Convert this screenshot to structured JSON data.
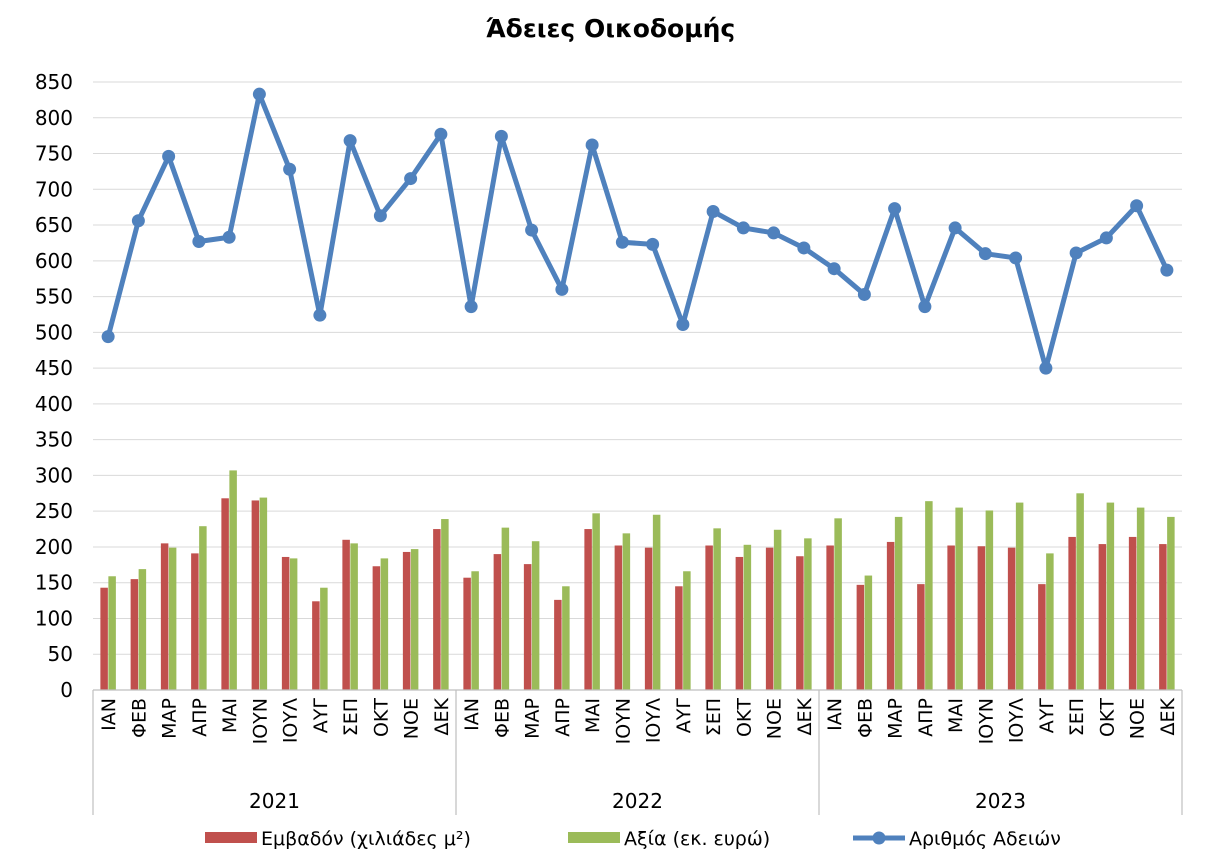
{
  "chart_data": {
    "type": "bar",
    "title": "Άδειες Οικοδομής",
    "xlabel": "",
    "ylabel": "",
    "ylim": [
      0,
      850
    ],
    "ytick_step": 50,
    "grid": true,
    "legend_position": "bottom",
    "years": [
      "2021",
      "2022",
      "2023"
    ],
    "months": [
      "ΙΑΝ",
      "ΦΕΒ",
      "ΜΑΡ",
      "ΑΠΡ",
      "ΜΑΙ",
      "ΙΟΥΝ",
      "ΙΟΥΛ",
      "ΑΥΓ",
      "ΣΕΠ",
      "ΟΚΤ",
      "ΝΟΕ",
      "ΔΕΚ"
    ],
    "series": [
      {
        "name": "Εμβαδόν (χιλιάδες μ²)",
        "kind": "bar",
        "color": "#c0504d",
        "values": [
          143,
          155,
          205,
          191,
          268,
          265,
          186,
          124,
          210,
          173,
          193,
          225,
          157,
          190,
          176,
          126,
          225,
          202,
          199,
          145,
          202,
          186,
          199,
          187,
          202,
          147,
          207,
          148,
          202,
          201,
          199,
          148,
          214,
          204,
          214,
          204
        ]
      },
      {
        "name": "Αξία (εκ. ευρώ)",
        "kind": "bar",
        "color": "#9bbb59",
        "values": [
          159,
          169,
          199,
          229,
          307,
          269,
          184,
          143,
          205,
          184,
          197,
          239,
          166,
          227,
          208,
          145,
          247,
          219,
          245,
          166,
          226,
          203,
          224,
          212,
          240,
          160,
          242,
          264,
          255,
          251,
          262,
          191,
          275,
          262,
          255,
          242
        ]
      },
      {
        "name": "Αριθμός Αδειών",
        "kind": "line",
        "color": "#4f81bd",
        "values": [
          494,
          656,
          746,
          627,
          633,
          833,
          728,
          524,
          768,
          663,
          715,
          777,
          536,
          774,
          643,
          560,
          762,
          626,
          623,
          511,
          669,
          646,
          639,
          618,
          589,
          553,
          673,
          536,
          646,
          610,
          604,
          450,
          611,
          632,
          677,
          587
        ]
      }
    ]
  }
}
